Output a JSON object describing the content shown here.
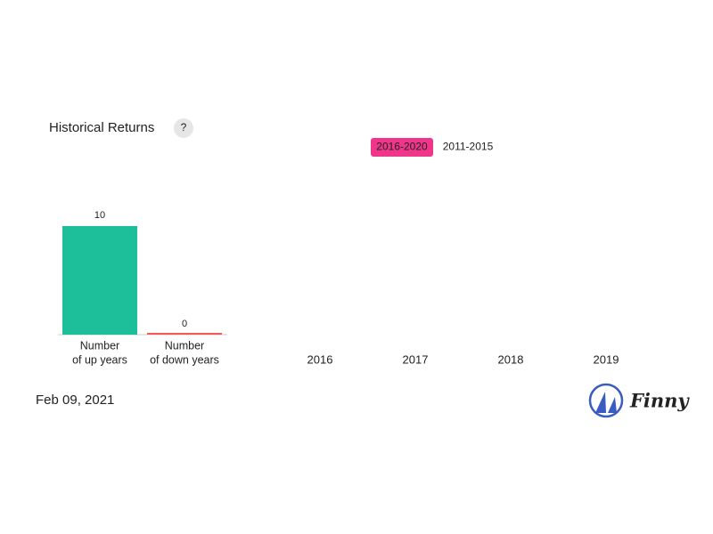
{
  "header": {
    "title": "Historical Returns",
    "help": "?"
  },
  "tabs": {
    "items": [
      "2016-2020",
      "2011-2015"
    ],
    "active": 0
  },
  "chart_data": {
    "type": "bar",
    "categories": [
      [
        "Number",
        "of up years"
      ],
      [
        "Number",
        "of down years"
      ]
    ],
    "values": [
      10,
      0
    ],
    "colors": [
      "#1dbf9b",
      "#f25c54"
    ]
  },
  "years": [
    "2016",
    "2017",
    "2018",
    "2019"
  ],
  "footer": {
    "date": "Feb 09, 2021",
    "brand": "Finny"
  }
}
